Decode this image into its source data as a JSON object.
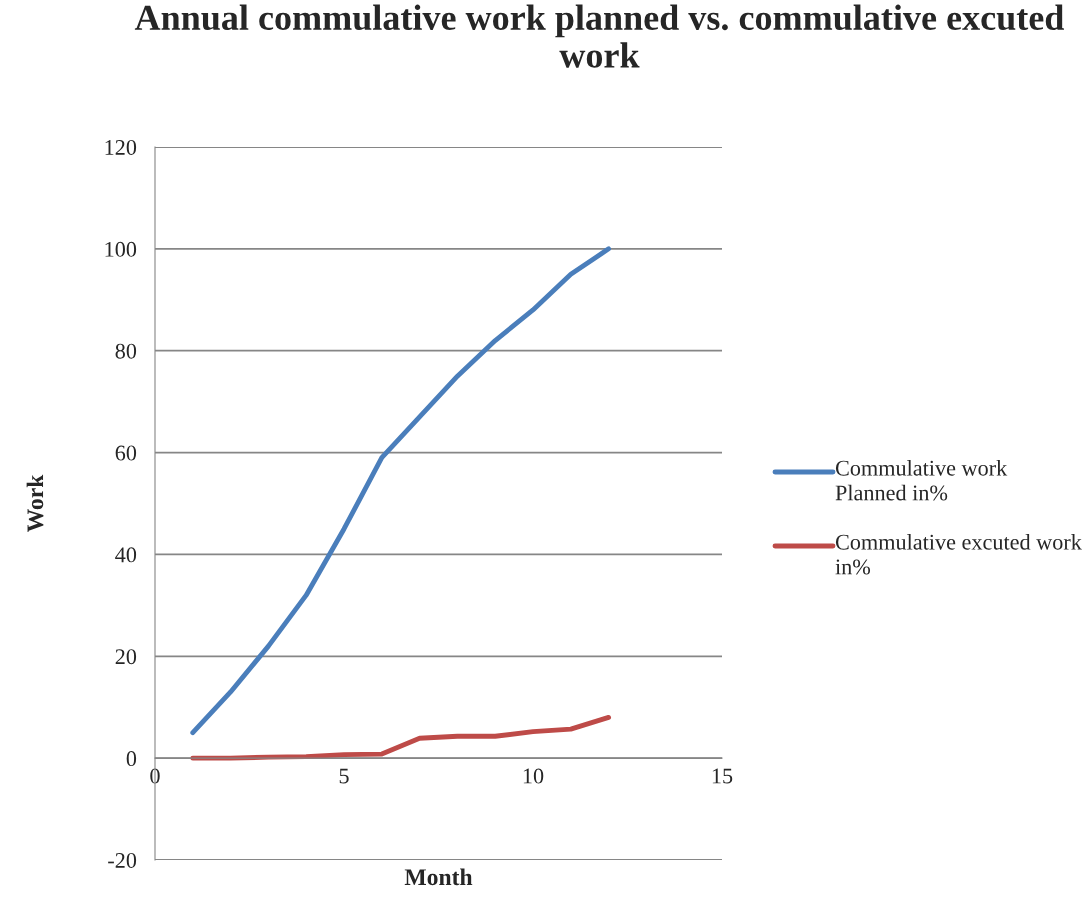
{
  "chart_data": {
    "type": "line",
    "title": "Annual commulative work planned vs. commulative excuted work",
    "xlabel": "Month",
    "ylabel": "Work",
    "x": [
      1,
      2,
      3,
      4,
      5,
      6,
      7,
      8,
      9,
      10,
      11,
      12
    ],
    "series": [
      {
        "name": "Commulative work Planned in%",
        "color": "#4a7ebb",
        "values": [
          5,
          13,
          22,
          32,
          45,
          59,
          67,
          75,
          82,
          88,
          95,
          100
        ]
      },
      {
        "name": "Commulative excuted work in%",
        "color": "#be4b48",
        "values": [
          0,
          0,
          0.2,
          0.3,
          0.7,
          0.8,
          3.9,
          4.3,
          4.3,
          5.2,
          5.7,
          8
        ]
      }
    ],
    "xlim": [
      0,
      15
    ],
    "xticks": [
      0,
      5,
      10,
      15
    ],
    "ylim": [
      -20,
      120
    ],
    "yticks": [
      -20,
      0,
      20,
      40,
      60,
      80,
      100,
      120
    ],
    "grid": "y",
    "legend": "right",
    "marker": "none",
    "line_style": "solid"
  }
}
